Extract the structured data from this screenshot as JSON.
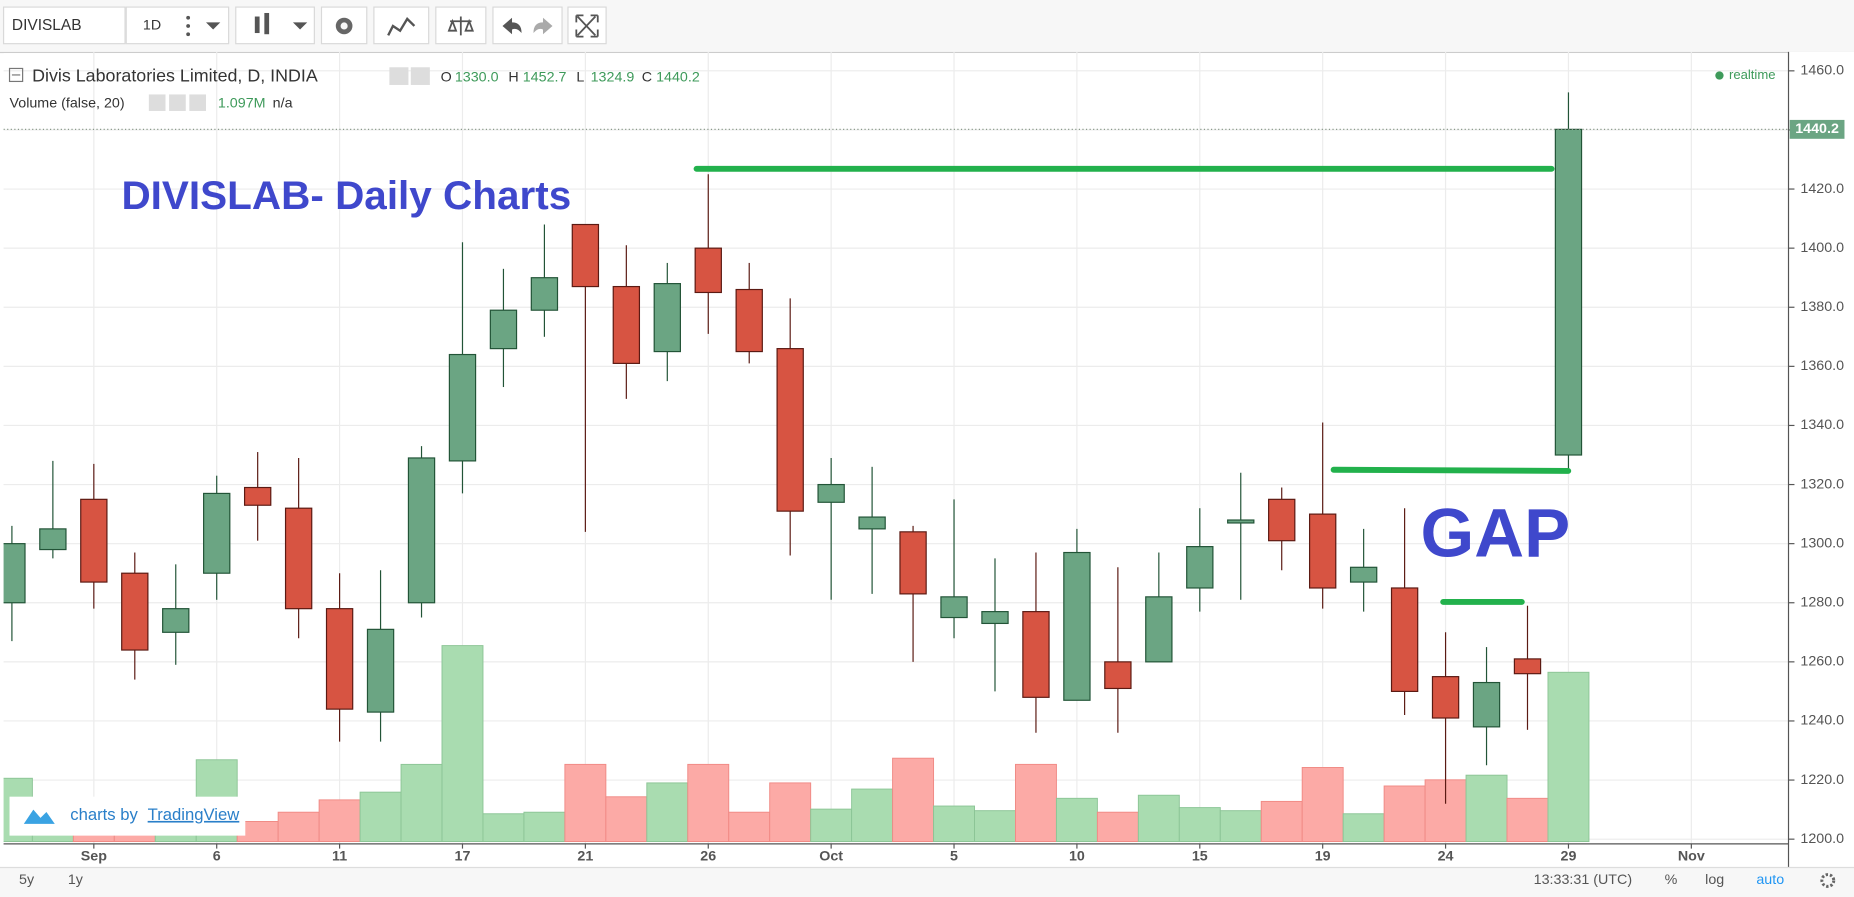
{
  "chart_data": {
    "type": "candlestick",
    "toolbar": {
      "symbol": "DIVISLAB",
      "interval": "1D"
    },
    "header": {
      "title": "Divis Laboratories Limited, D, INDIA",
      "ohlc": [
        {
          "label": "O",
          "value": "1330.0"
        },
        {
          "label": "H",
          "value": "1452.7"
        },
        {
          "label": "L",
          "value": "1324.9"
        },
        {
          "label": "C",
          "value": "1440.2"
        }
      ],
      "volume_label": "Volume (false, 20)",
      "volume_value": "1.097M",
      "volume_extra": "n/a",
      "realtime": "realtime"
    },
    "annotations": {
      "title": "DIVISLAB- Daily Charts",
      "gap": "GAP"
    },
    "logo": {
      "prefix": "charts by",
      "brand": "TradingView"
    },
    "bottom_bar": {
      "ranges": [
        "5y",
        "1y"
      ],
      "time": "13:33:31 (UTC)",
      "options": [
        "%",
        "log",
        "auto"
      ]
    },
    "categories": [
      null,
      null,
      "Sep",
      null,
      null,
      "6",
      null,
      null,
      "11",
      null,
      null,
      "17",
      null,
      null,
      "21",
      null,
      null,
      "26",
      null,
      null,
      "Oct",
      null,
      null,
      "5",
      null,
      null,
      "10",
      null,
      null,
      "15",
      null,
      null,
      "19",
      null,
      null,
      "24",
      null,
      null,
      "29",
      null,
      null,
      "Nov",
      null,
      null
    ],
    "open": [
      1280,
      1298,
      1315,
      1290,
      1270,
      1290,
      1319,
      1312,
      1278,
      1243,
      1280,
      1328,
      1366,
      1379,
      1408,
      1387,
      1365,
      1400,
      1386,
      1366,
      1314,
      1305,
      1304,
      1275,
      1273,
      1277,
      1247,
      1260,
      1260,
      1285,
      1307,
      1315,
      1310,
      1287,
      1285,
      1255,
      1238,
      1261,
      1330,
      null,
      null,
      null,
      null,
      null
    ],
    "high": [
      1306,
      1328,
      1327,
      1297,
      1293,
      1323,
      1331,
      1329,
      1290,
      1291,
      1333,
      1402,
      1393,
      1408,
      1408,
      1401,
      1395,
      1425,
      1395,
      1383,
      1329,
      1326,
      1306,
      1315,
      1295,
      1297,
      1305,
      1292,
      1297,
      1312,
      1324,
      1319,
      1341,
      1305,
      1312,
      1270,
      1265,
      1279,
      1452.7,
      null,
      null,
      null,
      null,
      null
    ],
    "low": [
      1267,
      1295,
      1278,
      1254,
      1259,
      1281,
      1301,
      1268,
      1233,
      1233,
      1275,
      1317,
      1353,
      1370,
      1304,
      1349,
      1355,
      1371,
      1361,
      1296,
      1281,
      1283,
      1260,
      1268,
      1250,
      1236,
      1247,
      1236,
      1260,
      1277,
      1281,
      1291,
      1278,
      1277,
      1242,
      1212,
      1225,
      1237,
      1324.9,
      null,
      null,
      null,
      null,
      null
    ],
    "close": [
      1300,
      1305,
      1287,
      1264,
      1278,
      1317,
      1313,
      1278,
      1244,
      1271,
      1329,
      1364,
      1379,
      1390,
      1387,
      1361,
      1388,
      1385,
      1365,
      1311,
      1320,
      1309,
      1283,
      1282,
      1277,
      1248,
      1297,
      1251,
      1282,
      1299,
      1308,
      1301,
      1285,
      1292,
      1250,
      1241,
      1253,
      1256,
      1440.2,
      null,
      null,
      null,
      null,
      null
    ],
    "volume": [
      0.41,
      0.1,
      0.06,
      0.1,
      0.1,
      0.53,
      0.13,
      0.19,
      0.27,
      0.32,
      0.5,
      1.27,
      0.18,
      0.19,
      0.5,
      0.29,
      0.38,
      0.5,
      0.19,
      0.38,
      0.21,
      0.34,
      0.54,
      0.23,
      0.2,
      0.5,
      0.28,
      0.19,
      0.3,
      0.22,
      0.2,
      0.26,
      0.48,
      0.18,
      0.36,
      0.4,
      0.43,
      0.28,
      1.097,
      null,
      null,
      null,
      null,
      null
    ],
    "ylim": [
      1198.4,
      1466.4
    ],
    "yticks": [
      {
        "value": 1200,
        "label": "1200.0"
      },
      {
        "value": 1220,
        "label": "1220.0"
      },
      {
        "value": 1240,
        "label": "1240.0"
      },
      {
        "value": 1260,
        "label": "1260.0"
      },
      {
        "value": 1280,
        "label": "1280.0"
      },
      {
        "value": 1300,
        "label": "1300.0"
      },
      {
        "value": 1320,
        "label": "1320.0"
      },
      {
        "value": 1340,
        "label": "1340.0"
      },
      {
        "value": 1360,
        "label": "1360.0"
      },
      {
        "value": 1380,
        "label": "1380.0"
      },
      {
        "value": 1400,
        "label": "1400.0"
      },
      {
        "value": 1420,
        "label": "1420.0"
      },
      {
        "value": 1440,
        "label": "1440.0"
      },
      {
        "value": 1460,
        "label": "1460.0"
      }
    ],
    "volume_lim": [
      0,
      1.4
    ],
    "grid": true,
    "colors": {
      "up": "#6ba583",
      "up_border": "#225437",
      "down": "#d75442",
      "down_border": "#5b1a13",
      "volume_up": "#a9dcb0",
      "volume_down": "#fcaaa6",
      "last_price": "#6ba583"
    }
  }
}
